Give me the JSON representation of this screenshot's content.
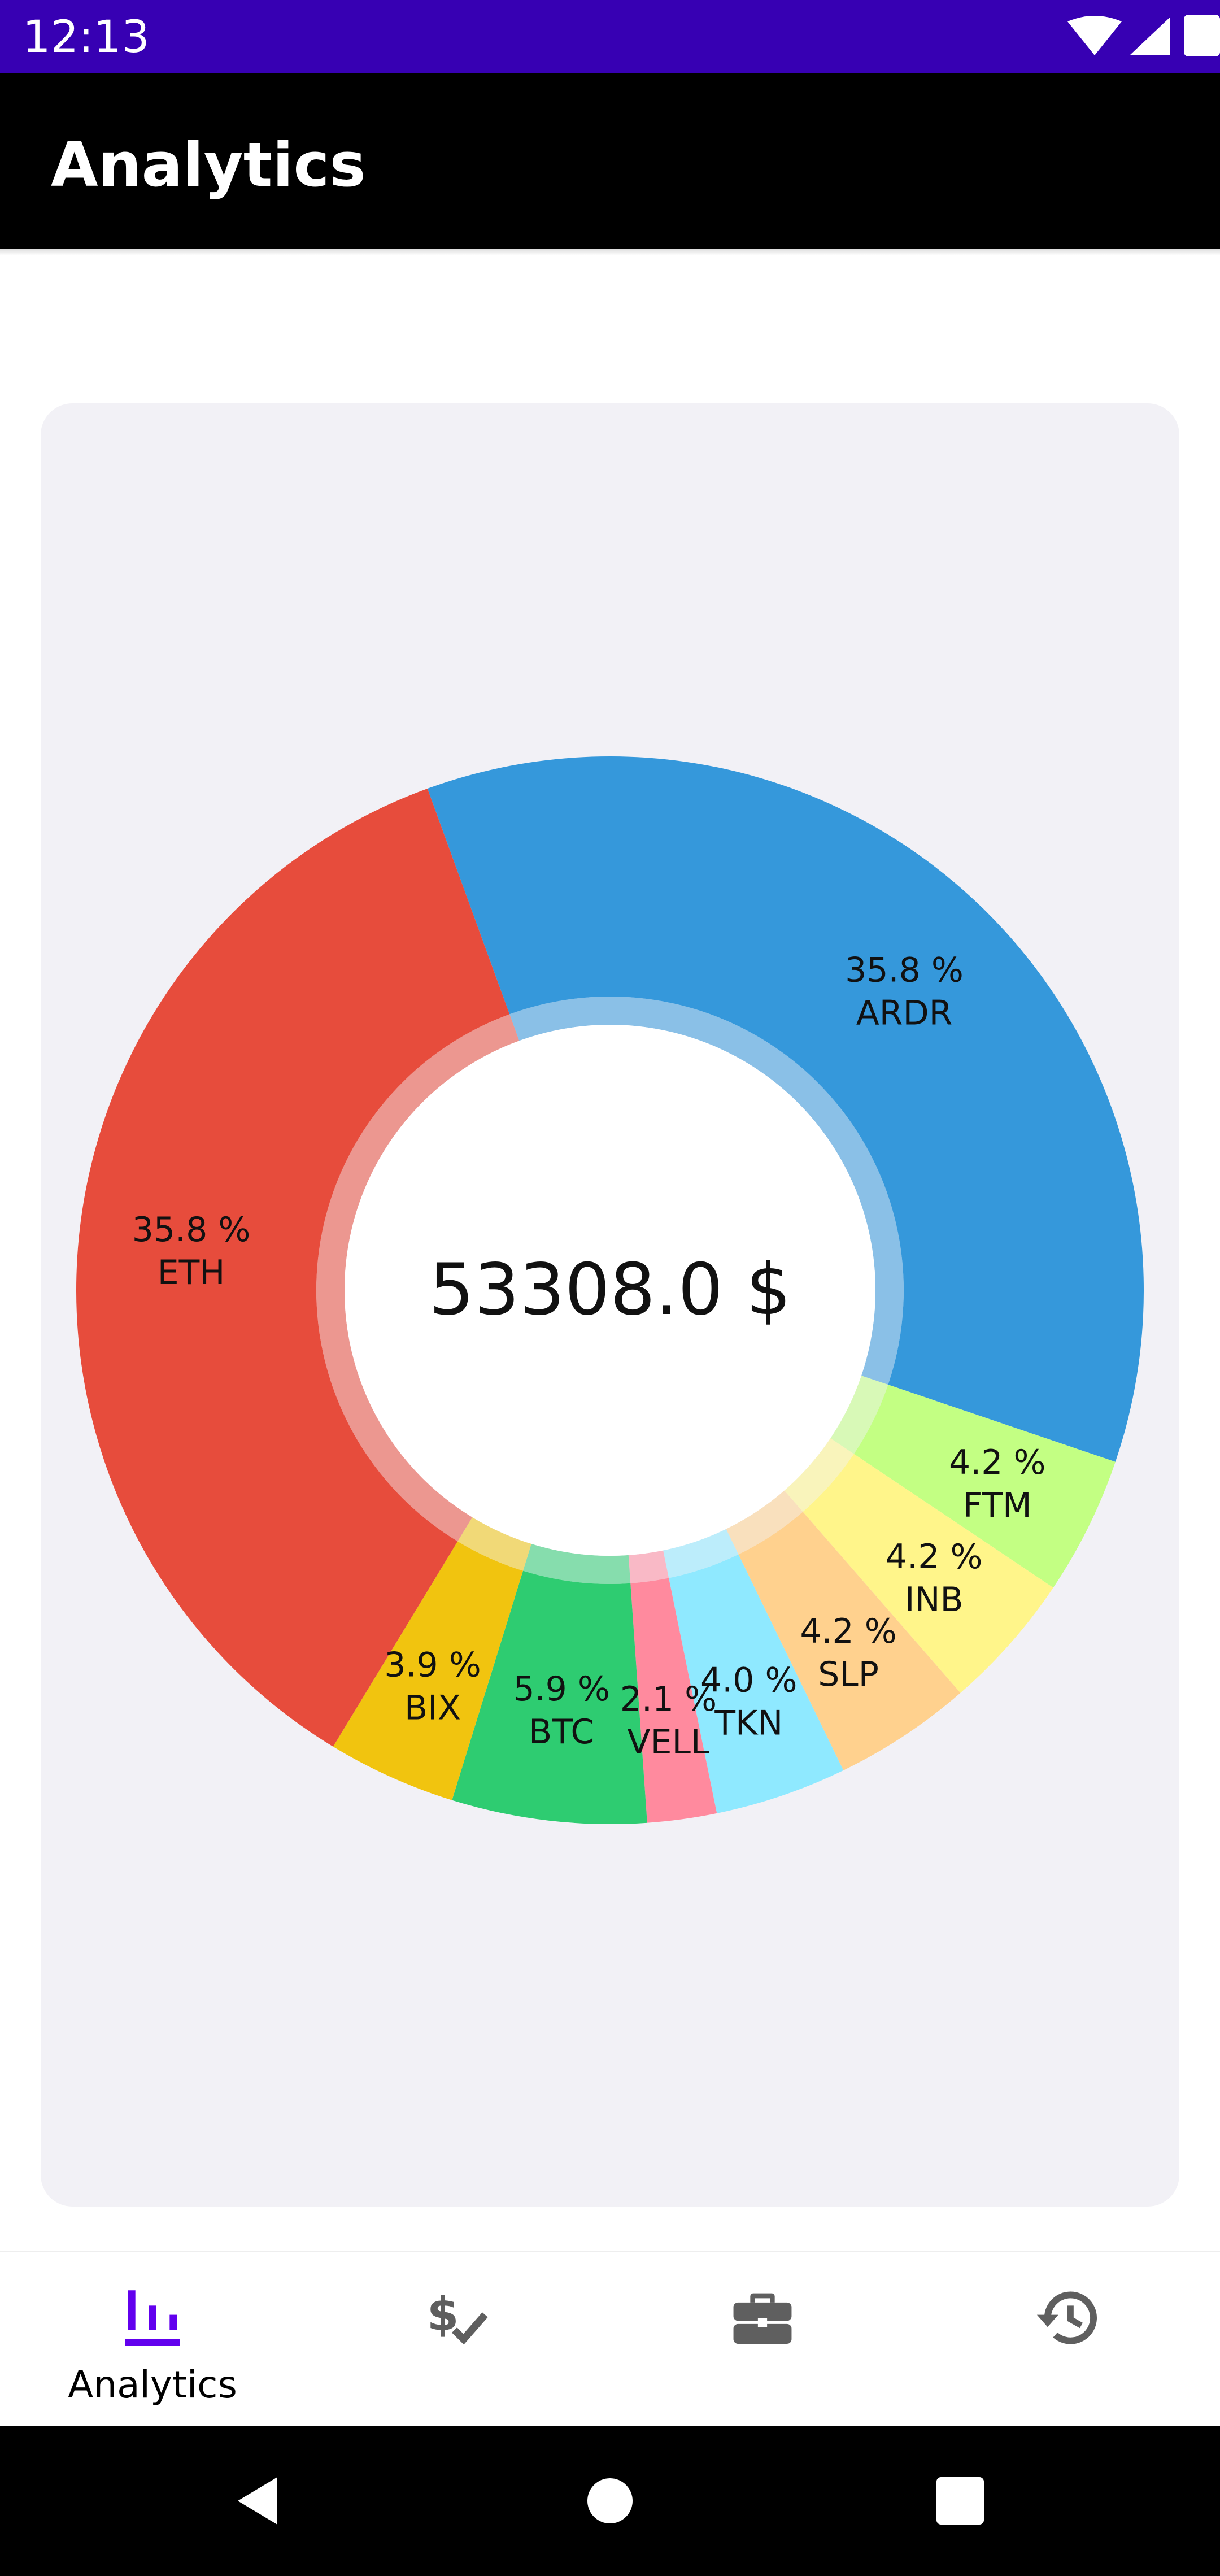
{
  "status_bar": {
    "time": "12:13",
    "background": "#3700B3"
  },
  "app_bar": {
    "title": "Analytics"
  },
  "chart_data": {
    "type": "pie",
    "style": "donut",
    "center_label": "53308.0 $",
    "slices": [
      {
        "name": "ARDR",
        "percent": 35.8,
        "label": "35.8 %",
        "color": "#3598DB"
      },
      {
        "name": "FTM",
        "percent": 4.2,
        "label": "4.2 %",
        "color": "#C3FF83"
      },
      {
        "name": "INB",
        "percent": 4.2,
        "label": "4.2 %",
        "color": "#FFF58A"
      },
      {
        "name": "SLP",
        "percent": 4.2,
        "label": "4.2 %",
        "color": "#FFD18E"
      },
      {
        "name": "TKN",
        "percent": 4.0,
        "label": "4.0 %",
        "color": "#8FE9FF"
      },
      {
        "name": "VELL",
        "percent": 2.1,
        "label": "2.1 %",
        "color": "#FF8A9E"
      },
      {
        "name": "BTC",
        "percent": 5.9,
        "label": "5.9 %",
        "color": "#2ECC71"
      },
      {
        "name": "BIX",
        "percent": 3.9,
        "label": "3.9 %",
        "color": "#F1C40F"
      },
      {
        "name": "ETH",
        "percent": 35.8,
        "label": "35.8 %",
        "color": "#E74C3C"
      }
    ]
  },
  "bottom_nav": {
    "accent": "#6200EE",
    "items": [
      {
        "label": "Analytics",
        "icon": "bar-chart-icon",
        "selected": true
      },
      {
        "label": "",
        "icon": "dollar-check-icon",
        "selected": false
      },
      {
        "label": "",
        "icon": "briefcase-icon",
        "selected": false
      },
      {
        "label": "",
        "icon": "history-icon",
        "selected": false
      }
    ]
  },
  "system_nav": {
    "buttons": [
      "back-icon",
      "home-icon",
      "recents-icon"
    ]
  }
}
